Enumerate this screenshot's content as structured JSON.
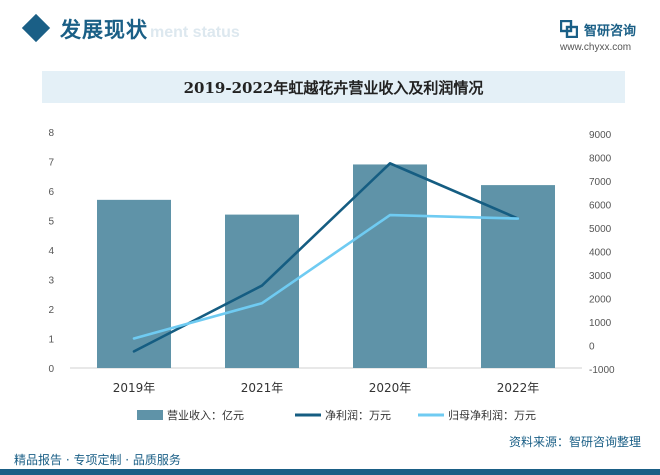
{
  "header": {
    "section_title": "发展现状",
    "section_subtitle_ghost": "ment status",
    "brand_name": "智研咨询",
    "brand_url": "www.chyxx.com"
  },
  "chart_data": {
    "type": "bar",
    "title": "2019-2022年虹越花卉营业收入及利润情况",
    "categories": [
      "2019年",
      "2021年",
      "2020年",
      "2022年"
    ],
    "series": [
      {
        "name": "营业收入：亿元",
        "kind": "bar",
        "axis": "left",
        "values": [
          5.7,
          5.2,
          6.9,
          6.2
        ],
        "color": "#5f93a8"
      },
      {
        "name": "净利润：万元",
        "kind": "line",
        "axis": "right",
        "values": [
          -250,
          2550,
          7750,
          5400
        ],
        "color": "#155d82"
      },
      {
        "name": "归母净利润：万元",
        "kind": "line",
        "axis": "right",
        "values": [
          300,
          1800,
          5550,
          5400
        ],
        "color": "#6fcbf2"
      }
    ],
    "y_left": {
      "min": 0,
      "max": 8,
      "ticks": [
        "0",
        "1",
        "2",
        "3",
        "4",
        "5",
        "6",
        "7",
        "8"
      ]
    },
    "y_right": {
      "min": -1000,
      "max": 9000,
      "ticks": [
        "-1000",
        "0",
        "1000",
        "2000",
        "3000",
        "4000",
        "5000",
        "6000",
        "7000",
        "8000",
        "9000"
      ]
    },
    "grid": false,
    "legend_position": "bottom"
  },
  "footer": {
    "left_text": "精品报告 · 专项定制 · 品质服务",
    "source_text": "资料来源：智研咨询整理"
  }
}
